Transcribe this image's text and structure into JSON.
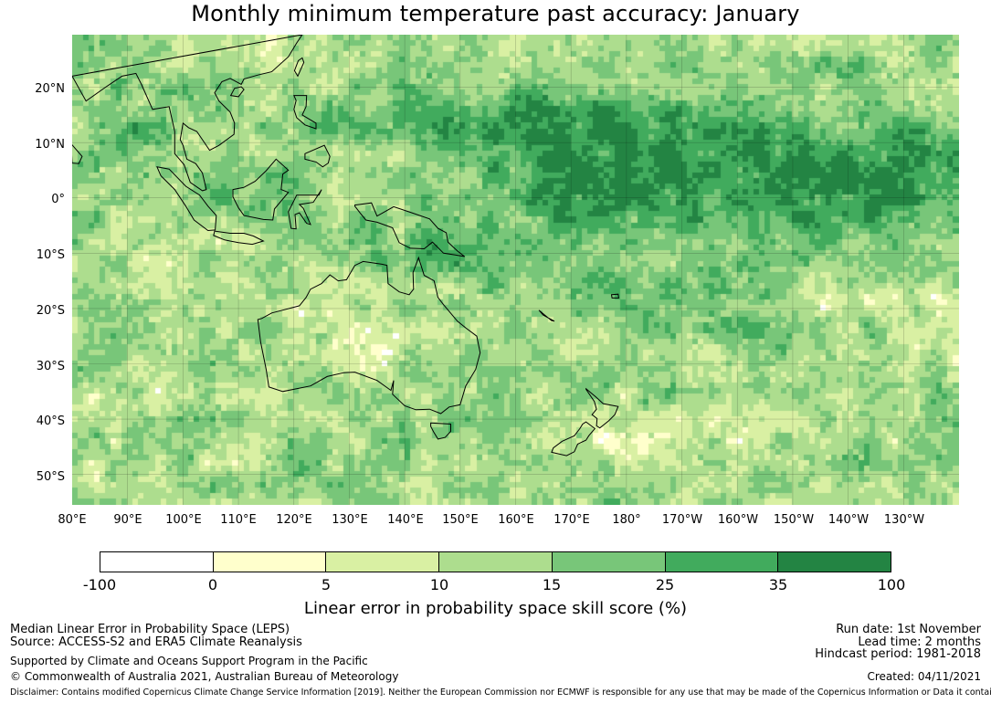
{
  "title": "Monthly minimum temperature past accuracy: January",
  "map": {
    "lat_labels": [
      "20°N",
      "10°N",
      "0°",
      "10°S",
      "20°S",
      "30°S",
      "40°S",
      "50°S"
    ],
    "lon_labels": [
      "80°E",
      "90°E",
      "100°E",
      "110°E",
      "120°E",
      "130°E",
      "140°E",
      "150°E",
      "160°E",
      "170°E",
      "180°",
      "170°W",
      "160°W",
      "150°W",
      "140°W",
      "130°W"
    ],
    "extent": {
      "lon_min": 80,
      "lon_max": 240,
      "lat_min": -55.5,
      "lat_max": 29.5
    }
  },
  "colorbar": {
    "ticks": [
      "-100",
      "0",
      "5",
      "10",
      "15",
      "25",
      "35",
      "100"
    ],
    "colors": [
      "#ffffff",
      "#ffffcc",
      "#d9f0a3",
      "#addd8e",
      "#78c679",
      "#41ab5d",
      "#238443"
    ],
    "label": "Linear error in probability space skill score (%)"
  },
  "footer": {
    "left": {
      "line1": "Median Linear Error in Probability Space (LEPS)",
      "line2": "Source: ACCESS-S2 and ERA5 Climate Reanalysis",
      "line3": "Supported by Climate and Oceans Support Program in the Pacific",
      "line4": "© Commonwealth of Australia 2021, Australian Bureau of Meteorology"
    },
    "right": {
      "run_date": "Run date: 1st November",
      "lead_time": "Lead time: 2 months",
      "hindcast": "Hindcast period: 1981-2018",
      "created": "Created: 04/11/2021"
    },
    "disclaimer": "Disclaimer: Contains modified Copernicus Climate Change Service Information [2019]. Neither the European Commission nor ECMWF is responsible for any use that may be made of the Copernicus Information or Data it contains."
  }
}
